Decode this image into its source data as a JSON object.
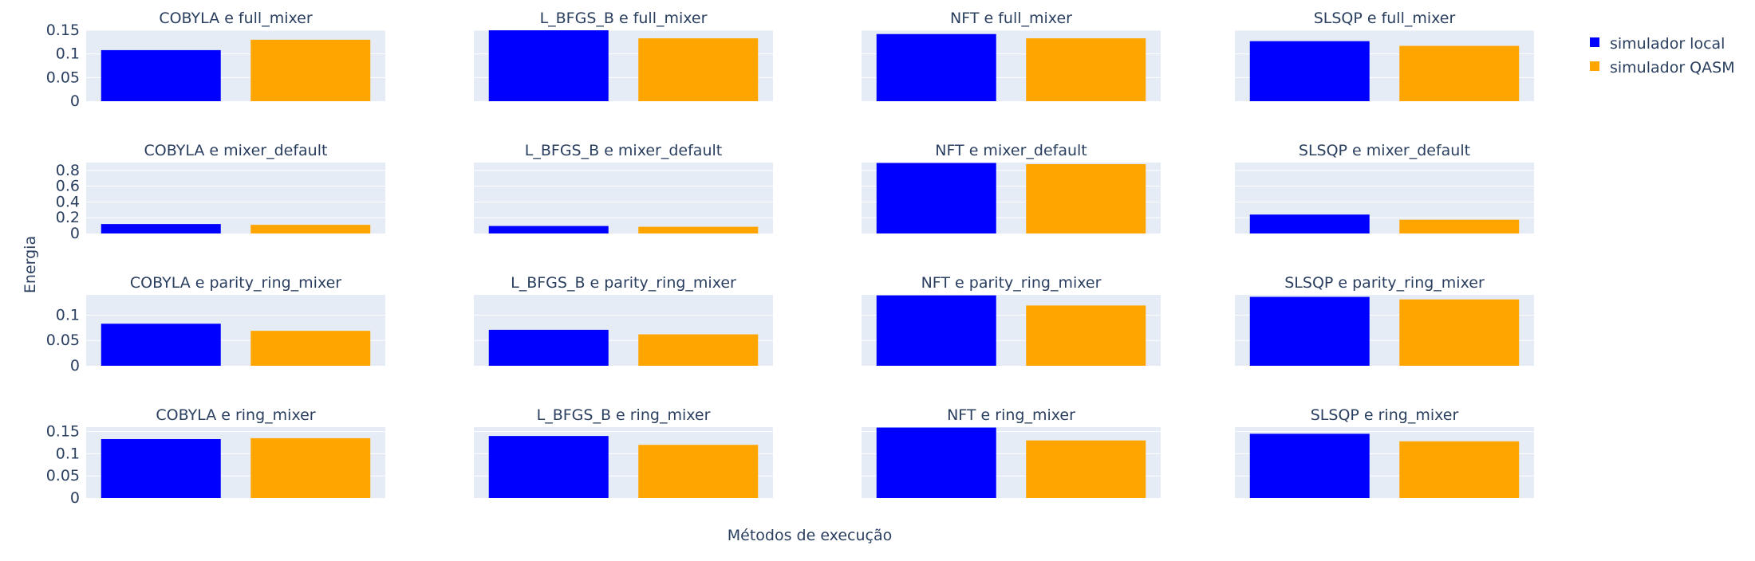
{
  "figure": {
    "ylabel": "Energia",
    "xlabel": "Métodos de execução",
    "legend": [
      {
        "name": "simulador local",
        "color": "#0000ff"
      },
      {
        "name": "simulador QASM",
        "color": "#ffa500"
      }
    ]
  },
  "chart_data": [
    {
      "type": "bar",
      "title": "COBYLA e full_mixer",
      "series": [
        {
          "name": "simulador local",
          "values": [
            0.108
          ]
        },
        {
          "name": "simulador QASM",
          "values": [
            0.13
          ]
        }
      ],
      "ylim": [
        0,
        0.15
      ],
      "yticks": [
        "0",
        "0.05",
        "0.1",
        "0.15"
      ]
    },
    {
      "type": "bar",
      "title": "L_BFGS_B e full_mixer",
      "series": [
        {
          "name": "simulador local",
          "values": [
            0.15
          ]
        },
        {
          "name": "simulador QASM",
          "values": [
            0.133
          ]
        }
      ],
      "ylim": [
        0,
        0.15
      ],
      "yticks": []
    },
    {
      "type": "bar",
      "title": "NFT e full_mixer",
      "series": [
        {
          "name": "simulador local",
          "values": [
            0.142
          ]
        },
        {
          "name": "simulador QASM",
          "values": [
            0.133
          ]
        }
      ],
      "ylim": [
        0,
        0.15
      ],
      "yticks": []
    },
    {
      "type": "bar",
      "title": "SLSQP e full_mixer",
      "series": [
        {
          "name": "simulador local",
          "values": [
            0.127
          ]
        },
        {
          "name": "simulador QASM",
          "values": [
            0.117
          ]
        }
      ],
      "ylim": [
        0,
        0.15
      ],
      "yticks": []
    },
    {
      "type": "bar",
      "title": "COBYLA e mixer_default",
      "series": [
        {
          "name": "simulador local",
          "values": [
            0.12
          ]
        },
        {
          "name": "simulador QASM",
          "values": [
            0.11
          ]
        }
      ],
      "ylim": [
        0,
        0.9
      ],
      "yticks": [
        "0",
        "0.2",
        "0.4",
        "0.6",
        "0.8"
      ]
    },
    {
      "type": "bar",
      "title": "L_BFGS_B e mixer_default",
      "series": [
        {
          "name": "simulador local",
          "values": [
            0.095
          ]
        },
        {
          "name": "simulador QASM",
          "values": [
            0.085
          ]
        }
      ],
      "ylim": [
        0,
        0.9
      ],
      "yticks": []
    },
    {
      "type": "bar",
      "title": "NFT e mixer_default",
      "series": [
        {
          "name": "simulador local",
          "values": [
            0.895
          ]
        },
        {
          "name": "simulador QASM",
          "values": [
            0.88
          ]
        }
      ],
      "ylim": [
        0,
        0.9
      ],
      "yticks": []
    },
    {
      "type": "bar",
      "title": "SLSQP e mixer_default",
      "series": [
        {
          "name": "simulador local",
          "values": [
            0.24
          ]
        },
        {
          "name": "simulador QASM",
          "values": [
            0.175
          ]
        }
      ],
      "ylim": [
        0,
        0.9
      ],
      "yticks": []
    },
    {
      "type": "bar",
      "title": "COBYLA e parity_ring_mixer",
      "series": [
        {
          "name": "simulador local",
          "values": [
            0.083
          ]
        },
        {
          "name": "simulador QASM",
          "values": [
            0.069
          ]
        }
      ],
      "ylim": [
        0,
        0.14
      ],
      "yticks": [
        "0",
        "0.05",
        "0.1"
      ]
    },
    {
      "type": "bar",
      "title": "L_BFGS_B e parity_ring_mixer",
      "series": [
        {
          "name": "simulador local",
          "values": [
            0.071
          ]
        },
        {
          "name": "simulador QASM",
          "values": [
            0.062
          ]
        }
      ],
      "ylim": [
        0,
        0.14
      ],
      "yticks": []
    },
    {
      "type": "bar",
      "title": "NFT e parity_ring_mixer",
      "series": [
        {
          "name": "simulador local",
          "values": [
            0.139
          ]
        },
        {
          "name": "simulador QASM",
          "values": [
            0.119
          ]
        }
      ],
      "ylim": [
        0,
        0.14
      ],
      "yticks": []
    },
    {
      "type": "bar",
      "title": "SLSQP e parity_ring_mixer",
      "series": [
        {
          "name": "simulador local",
          "values": [
            0.136
          ]
        },
        {
          "name": "simulador QASM",
          "values": [
            0.131
          ]
        }
      ],
      "ylim": [
        0,
        0.14
      ],
      "yticks": []
    },
    {
      "type": "bar",
      "title": "COBYLA e ring_mixer",
      "series": [
        {
          "name": "simulador local",
          "values": [
            0.133
          ]
        },
        {
          "name": "simulador QASM",
          "values": [
            0.135
          ]
        }
      ],
      "ylim": [
        0,
        0.16
      ],
      "yticks": [
        "0",
        "0.05",
        "0.1",
        "0.15"
      ]
    },
    {
      "type": "bar",
      "title": "L_BFGS_B e ring_mixer",
      "series": [
        {
          "name": "simulador local",
          "values": [
            0.14
          ]
        },
        {
          "name": "simulador QASM",
          "values": [
            0.12
          ]
        }
      ],
      "ylim": [
        0,
        0.16
      ],
      "yticks": []
    },
    {
      "type": "bar",
      "title": "NFT e ring_mixer",
      "series": [
        {
          "name": "simulador local",
          "values": [
            0.159
          ]
        },
        {
          "name": "simulador QASM",
          "values": [
            0.13
          ]
        }
      ],
      "ylim": [
        0,
        0.16
      ],
      "yticks": []
    },
    {
      "type": "bar",
      "title": "SLSQP e ring_mixer",
      "series": [
        {
          "name": "simulador local",
          "values": [
            0.145
          ]
        },
        {
          "name": "simulador QASM",
          "values": [
            0.128
          ]
        }
      ],
      "ylim": [
        0,
        0.16
      ],
      "yticks": []
    }
  ]
}
